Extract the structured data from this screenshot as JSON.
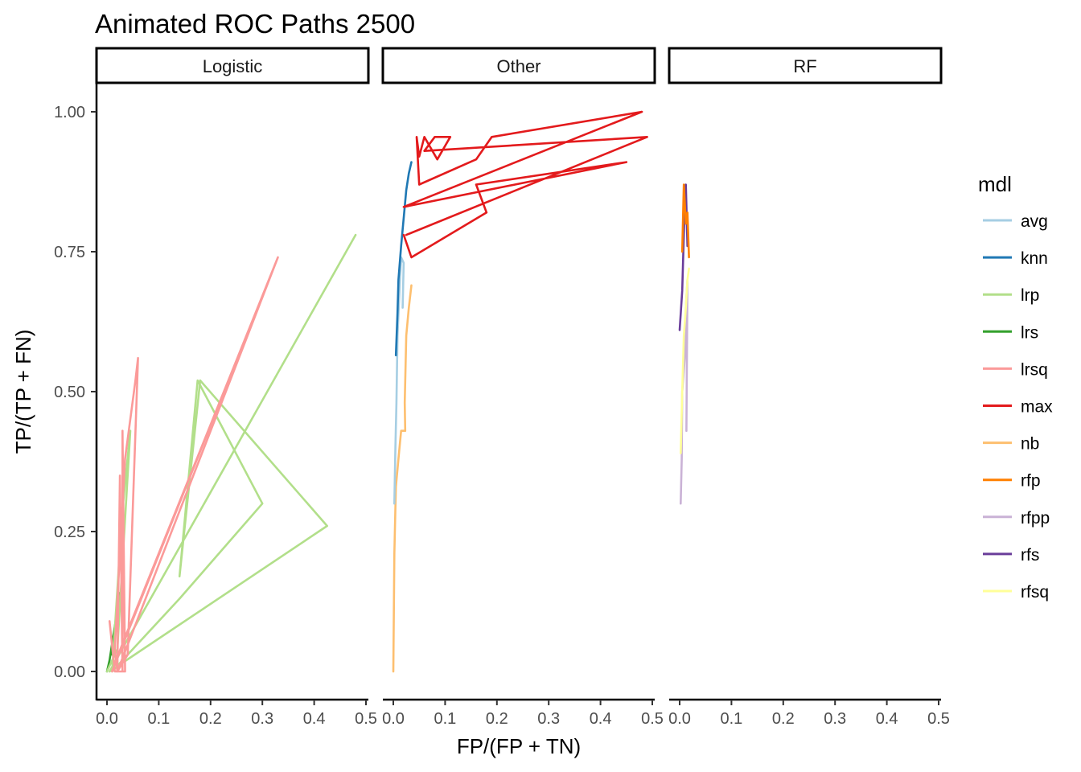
{
  "chart_data": {
    "type": "line",
    "title": "Animated ROC Paths 2500",
    "xlabel": "FP/(FP + TN)",
    "ylabel": "TP/(TP + FN)",
    "xlim": [
      0,
      0.5
    ],
    "ylim": [
      0,
      1
    ],
    "x_ticks": [
      "0.0",
      "0.1",
      "0.2",
      "0.3",
      "0.4",
      "0.5"
    ],
    "y_ticks": [
      "0.00",
      "0.25",
      "0.50",
      "0.75",
      "1.00"
    ],
    "grid": false,
    "legend": {
      "title": "mdl",
      "position": "right",
      "entries": [
        "avg",
        "knn",
        "lrp",
        "lrs",
        "lrsq",
        "max",
        "nb",
        "rfp",
        "rfpp",
        "rfs",
        "rfsq"
      ]
    },
    "colors": {
      "avg": "#A6CEE3",
      "knn": "#1F78B4",
      "lrp": "#B2DF8A",
      "lrs": "#33A02C",
      "lrsq": "#FB9A99",
      "max": "#E31A1C",
      "nb": "#FDBF6F",
      "rfp": "#FF7F00",
      "rfpp": "#CAB2D6",
      "rfs": "#6A3D9A",
      "rfsq": "#FFFF99"
    },
    "panels": [
      {
        "label": "Logistic",
        "series": [
          {
            "name": "lrs",
            "points": [
              [
                0.0,
                0.0
              ],
              [
                0.005,
                0.02
              ],
              [
                0.01,
                0.05
              ],
              [
                0.015,
                0.08
              ],
              [
                0.02,
                0.11
              ],
              [
                0.025,
                0.14
              ],
              [
                0.02,
                0.09
              ],
              [
                0.01,
                0.03
              ]
            ]
          },
          {
            "name": "lrp",
            "points": [
              [
                0.0,
                0.0
              ],
              [
                0.02,
                0.04
              ],
              [
                0.045,
                0.43
              ],
              [
                0.03,
                0.29
              ],
              [
                0.01,
                0.0
              ],
              [
                0.14,
                0.13
              ],
              [
                0.3,
                0.3
              ],
              [
                0.175,
                0.52
              ],
              [
                0.14,
                0.17
              ],
              [
                0.18,
                0.52
              ],
              [
                0.425,
                0.26
              ],
              [
                0.005,
                0.0
              ],
              [
                0.48,
                0.78
              ]
            ]
          },
          {
            "name": "lrsq",
            "points": [
              [
                0.005,
                0.09
              ],
              [
                0.015,
                0.0
              ],
              [
                0.035,
                0.0
              ],
              [
                0.03,
                0.43
              ],
              [
                0.03,
                0.0
              ],
              [
                0.025,
                0.35
              ],
              [
                0.02,
                0.0
              ],
              [
                0.015,
                0.04
              ],
              [
                0.035,
                0.38
              ],
              [
                0.055,
                0.52
              ],
              [
                0.06,
                0.56
              ],
              [
                0.04,
                0.03
              ],
              [
                0.02,
                0.0
              ],
              [
                0.33,
                0.74
              ],
              [
                0.01,
                0.0
              ],
              [
                0.03,
                0.05
              ],
              [
                0.33,
                0.74
              ]
            ]
          }
        ]
      },
      {
        "label": "Other",
        "series": [
          {
            "name": "nb",
            "points": [
              [
                0.0,
                0.0
              ],
              [
                0.002,
                0.21
              ],
              [
                0.005,
                0.33
              ],
              [
                0.01,
                0.38
              ],
              [
                0.015,
                0.43
              ],
              [
                0.023,
                0.43
              ],
              [
                0.022,
                0.48
              ],
              [
                0.025,
                0.6
              ],
              [
                0.03,
                0.65
              ],
              [
                0.035,
                0.69
              ]
            ]
          },
          {
            "name": "avg",
            "points": [
              [
                0.002,
                0.3
              ],
              [
                0.004,
                0.4
              ],
              [
                0.006,
                0.48
              ],
              [
                0.008,
                0.6
              ],
              [
                0.012,
                0.68
              ],
              [
                0.015,
                0.74
              ],
              [
                0.02,
                0.73
              ],
              [
                0.018,
                0.65
              ]
            ]
          },
          {
            "name": "knn",
            "points": [
              [
                0.005,
                0.565
              ],
              [
                0.008,
                0.64
              ],
              [
                0.01,
                0.7
              ],
              [
                0.015,
                0.76
              ],
              [
                0.02,
                0.81
              ],
              [
                0.025,
                0.86
              ],
              [
                0.03,
                0.89
              ],
              [
                0.035,
                0.91
              ]
            ]
          },
          {
            "name": "max",
            "points": [
              [
                0.02,
                0.78
              ],
              [
                0.035,
                0.74
              ],
              [
                0.18,
                0.82
              ],
              [
                0.16,
                0.87
              ],
              [
                0.45,
                0.91
              ],
              [
                0.02,
                0.83
              ],
              [
                0.48,
                1.0
              ],
              [
                0.19,
                0.955
              ],
              [
                0.16,
                0.915
              ],
              [
                0.05,
                0.87
              ],
              [
                0.045,
                0.955
              ],
              [
                0.05,
                0.92
              ],
              [
                0.06,
                0.955
              ],
              [
                0.085,
                0.915
              ],
              [
                0.11,
                0.955
              ],
              [
                0.08,
                0.955
              ],
              [
                0.06,
                0.93
              ],
              [
                0.49,
                0.955
              ],
              [
                0.025,
                0.78
              ]
            ]
          }
        ]
      },
      {
        "label": "RF",
        "series": [
          {
            "name": "rfpp",
            "points": [
              [
                0.002,
                0.3
              ],
              [
                0.004,
                0.38
              ],
              [
                0.005,
                0.5
              ],
              [
                0.01,
                0.56
              ],
              [
                0.012,
                0.65
              ],
              [
                0.015,
                0.7
              ],
              [
                0.013,
                0.43
              ]
            ]
          },
          {
            "name": "rfsq",
            "points": [
              [
                0.002,
                0.39
              ],
              [
                0.005,
                0.5
              ],
              [
                0.008,
                0.6
              ],
              [
                0.012,
                0.65
              ],
              [
                0.015,
                0.7
              ],
              [
                0.018,
                0.72
              ]
            ]
          },
          {
            "name": "rfs",
            "points": [
              [
                0.0,
                0.61
              ],
              [
                0.005,
                0.68
              ],
              [
                0.008,
                0.78
              ],
              [
                0.01,
                0.83
              ],
              [
                0.012,
                0.87
              ],
              [
                0.015,
                0.76
              ]
            ]
          },
          {
            "name": "rfp",
            "points": [
              [
                0.005,
                0.75
              ],
              [
                0.008,
                0.87
              ],
              [
                0.012,
                0.8
              ],
              [
                0.015,
                0.82
              ],
              [
                0.018,
                0.74
              ]
            ]
          }
        ]
      }
    ]
  }
}
